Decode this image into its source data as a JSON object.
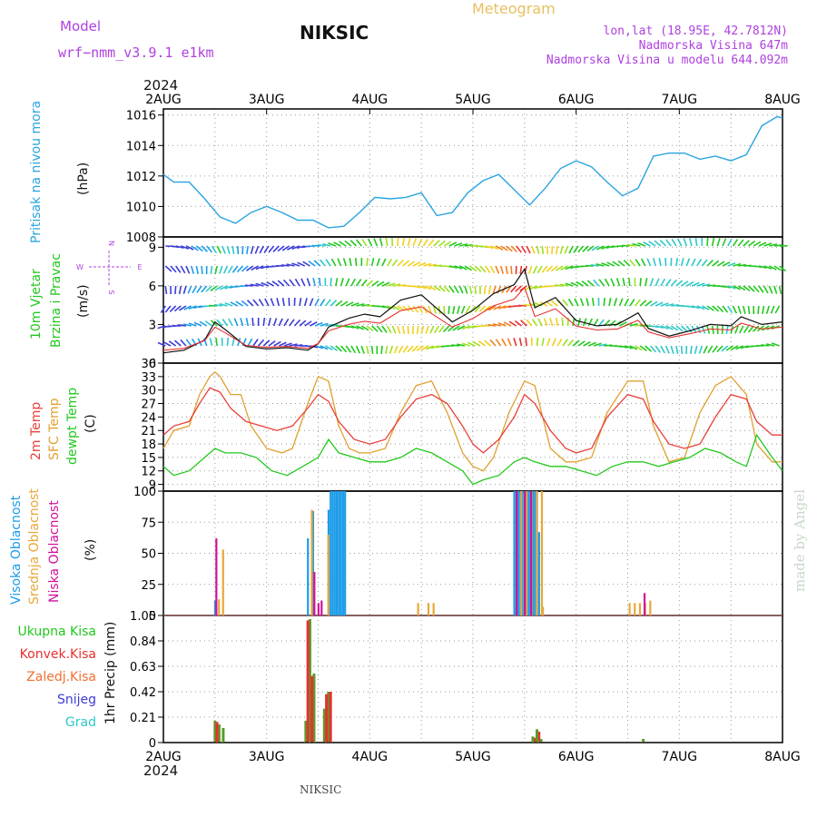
{
  "header": {
    "model_label": "Model",
    "model_name": "wrf−nmm_v3.9.1  e1km",
    "station": "NIKSIC",
    "meteogram_label": "Meteogram",
    "lonlat": "lon,lat (18.95E, 42.7812N)",
    "altitude": "Nadmorska Visina 647m",
    "model_altitude": "Nadmorska Visina u modelu 644.092m",
    "year_top": "2024",
    "year_bottom": "2024",
    "footer_station": "NIKSIC",
    "watermark": "made by Angel"
  },
  "colors": {
    "pressure": "#2aa4e0",
    "temp2m": "#e8403a",
    "sfc": "#e0a030",
    "dewpt": "#22c81e",
    "high_cloud": "#1c9ce8",
    "mid_cloud": "#e8a838",
    "low_cloud": "#d0109a",
    "total_precip": "#5a9a2a",
    "conv_precip": "#e83030",
    "snow": "#3c3cd8",
    "hail": "#30c8c8",
    "grid": "#999999"
  },
  "chart_data": [
    {
      "type": "line",
      "title": "",
      "ylabel_1": "Pritisak na nivou mora",
      "ylabel_2": "(hPa)",
      "x_ticks": [
        "2AUG",
        "3AUG",
        "4AUG",
        "5AUG",
        "6AUG",
        "7AUG",
        "8AUG"
      ],
      "ylim": [
        1008,
        1016.4
      ],
      "yticks": [
        "1008",
        "1010",
        "1012",
        "1014",
        "1016"
      ],
      "series": [
        {
          "key": "pressure",
          "x": [
            0,
            0.1,
            0.25,
            0.4,
            0.55,
            0.7,
            0.85,
            1.0,
            1.15,
            1.3,
            1.45,
            1.6,
            1.75,
            1.9,
            2.05,
            2.2,
            2.35,
            2.5,
            2.65,
            2.8,
            2.95,
            3.1,
            3.25,
            3.4,
            3.55,
            3.7,
            3.85,
            4.0,
            4.15,
            4.3,
            4.45,
            4.6,
            4.75,
            4.9,
            5.05,
            5.2,
            5.35,
            5.5,
            5.65,
            5.8,
            5.95,
            6.0
          ],
          "values": [
            1012.1,
            1011.6,
            1011.6,
            1010.5,
            1009.3,
            1008.9,
            1009.6,
            1010.0,
            1009.6,
            1009.1,
            1009.1,
            1008.6,
            1008.7,
            1009.6,
            1010.6,
            1010.5,
            1010.6,
            1010.9,
            1009.4,
            1009.6,
            1010.9,
            1011.7,
            1012.1,
            1011.1,
            1010.1,
            1011.2,
            1012.5,
            1013.0,
            1012.6,
            1011.6,
            1010.7,
            1011.2,
            1013.3,
            1013.5,
            1013.5,
            1013.1,
            1013.3,
            1013.0,
            1013.4,
            1015.3,
            1015.9,
            1015.8
          ]
        }
      ]
    },
    {
      "type": "line",
      "title": "",
      "ylabel_1": "10m Vjetar",
      "ylabel_2": "Brzina i Pravac",
      "ylabel_3": "(m/s)",
      "compass": {
        "n": "N",
        "s": "S",
        "w": "W",
        "e": "E"
      },
      "ylim": [
        0,
        9.8
      ],
      "yticks": [
        "0",
        "3",
        "6",
        "9"
      ],
      "series": [
        {
          "key": "wind_speed",
          "x": [
            0,
            0.2,
            0.4,
            0.5,
            0.6,
            0.8,
            1.0,
            1.2,
            1.4,
            1.5,
            1.6,
            1.8,
            1.95,
            2.1,
            2.3,
            2.5,
            2.6,
            2.8,
            3.0,
            3.2,
            3.4,
            3.5,
            3.6,
            3.8,
            4.0,
            4.2,
            4.4,
            4.6,
            4.7,
            4.9,
            5.1,
            5.3,
            5.5,
            5.6,
            5.8,
            6.0
          ],
          "values": [
            0.8,
            1.0,
            1.8,
            3.2,
            2.6,
            1.3,
            1.1,
            1.2,
            1.0,
            1.5,
            2.8,
            3.5,
            3.8,
            3.6,
            4.9,
            5.3,
            4.6,
            3.2,
            4.1,
            5.4,
            6.1,
            7.3,
            4.3,
            5.1,
            3.3,
            2.9,
            3.0,
            3.9,
            2.7,
            2.1,
            2.5,
            3.0,
            2.9,
            3.6,
            3.0,
            3.2
          ]
        }
      ]
    },
    {
      "type": "line",
      "title": "",
      "ylabel_1": "2m Temp",
      "ylabel_2": "SFC Temp",
      "ylabel_3": "dewpt Temp",
      "ylabel_4": "(C)",
      "ylim": [
        7.5,
        36
      ],
      "yticks": [
        "9",
        "12",
        "15",
        "18",
        "21",
        "24",
        "27",
        "30",
        "33",
        "36"
      ],
      "series": [
        {
          "key": "temp2m",
          "x": [
            0,
            0.1,
            0.25,
            0.35,
            0.45,
            0.55,
            0.65,
            0.8,
            0.95,
            1.1,
            1.25,
            1.4,
            1.5,
            1.6,
            1.7,
            1.85,
            2.0,
            2.15,
            2.3,
            2.45,
            2.6,
            2.75,
            2.9,
            3.0,
            3.1,
            3.25,
            3.4,
            3.5,
            3.6,
            3.75,
            3.9,
            4.0,
            4.15,
            4.3,
            4.5,
            4.65,
            4.75,
            4.9,
            5.05,
            5.2,
            5.35,
            5.5,
            5.65,
            5.75,
            5.9,
            6.0
          ],
          "values": [
            20,
            22,
            23,
            27,
            30.5,
            29.5,
            26,
            23,
            22,
            21,
            22,
            26,
            29,
            27.5,
            23,
            19,
            18,
            19,
            24,
            28,
            29,
            27,
            22,
            18,
            16,
            19,
            24,
            29,
            27,
            21,
            17,
            16,
            17,
            24,
            29,
            28,
            23,
            18,
            17,
            18,
            24,
            29,
            28,
            23,
            20,
            20
          ]
        },
        {
          "key": "sfc",
          "x": [
            0,
            0.1,
            0.25,
            0.35,
            0.45,
            0.5,
            0.55,
            0.65,
            0.75,
            0.85,
            1.0,
            1.15,
            1.25,
            1.4,
            1.5,
            1.6,
            1.7,
            1.8,
            1.9,
            2.0,
            2.15,
            2.3,
            2.45,
            2.6,
            2.75,
            2.9,
            3.0,
            3.1,
            3.2,
            3.35,
            3.5,
            3.6,
            3.75,
            3.9,
            4.0,
            4.15,
            4.3,
            4.5,
            4.65,
            4.75,
            4.9,
            5.05,
            5.2,
            5.35,
            5.5,
            5.65,
            5.75,
            5.9,
            6.0
          ],
          "values": [
            17,
            21,
            22,
            29,
            33,
            34,
            33,
            29,
            29,
            22,
            17,
            16,
            17,
            27,
            33,
            32,
            22,
            17,
            16,
            16,
            17,
            25,
            31,
            32,
            25,
            16,
            13,
            12,
            15,
            25,
            32,
            31,
            17,
            14,
            14,
            15,
            25,
            32,
            32,
            22,
            14,
            15,
            25,
            31,
            33,
            29,
            18,
            14,
            14
          ]
        },
        {
          "key": "dewpt",
          "x": [
            0,
            0.1,
            0.25,
            0.4,
            0.5,
            0.6,
            0.75,
            0.9,
            1.05,
            1.2,
            1.35,
            1.5,
            1.6,
            1.7,
            1.85,
            2.0,
            2.15,
            2.3,
            2.45,
            2.6,
            2.75,
            2.9,
            3.0,
            3.1,
            3.25,
            3.4,
            3.5,
            3.6,
            3.75,
            3.9,
            4.05,
            4.2,
            4.35,
            4.5,
            4.65,
            4.8,
            4.95,
            5.1,
            5.25,
            5.4,
            5.55,
            5.65,
            5.75,
            5.9,
            6.0
          ],
          "values": [
            13,
            11,
            12,
            15,
            17,
            16,
            16,
            15,
            12,
            11,
            13,
            15,
            19,
            16,
            15,
            14,
            14,
            15,
            17,
            16,
            14,
            12,
            9,
            10,
            11,
            14,
            15,
            14,
            13,
            13,
            12,
            11,
            13,
            14,
            14,
            13,
            14,
            15,
            17,
            16,
            14,
            13,
            20,
            15,
            12
          ]
        }
      ]
    },
    {
      "type": "bar",
      "title": "",
      "ylabel_1": "Visoka Oblacnost",
      "ylabel_2": "Srednja Oblacnost",
      "ylabel_3": "Niska Oblacnost",
      "ylabel_4": "(%)",
      "ylim": [
        0,
        100
      ],
      "yticks": [
        "0",
        "25",
        "50",
        "75",
        "100"
      ],
      "series": [
        {
          "key": "high",
          "x": [
            0.5,
            1.4,
            1.45,
            1.6,
            1.62,
            1.64,
            1.66,
            1.68,
            1.7,
            1.72,
            1.74,
            1.76,
            3.4,
            3.42,
            3.44,
            3.46,
            3.48,
            3.5,
            3.52,
            3.54,
            3.56,
            3.58,
            3.6,
            3.62,
            3.64
          ],
          "values": [
            12,
            62,
            84,
            85,
            100,
            100,
            100,
            100,
            100,
            100,
            100,
            100,
            100,
            100,
            100,
            100,
            100,
            100,
            100,
            100,
            100,
            100,
            100,
            100,
            67
          ]
        },
        {
          "key": "mid",
          "x": [
            0.52,
            0.56,
            1.42,
            1.58,
            2.45,
            2.55,
            2.6,
            3.45,
            3.5,
            3.55,
            3.6,
            3.65,
            3.66,
            4.5,
            4.55,
            4.6,
            4.65,
            4.7
          ],
          "values": [
            13,
            53,
            85,
            65,
            10,
            10,
            10,
            100,
            100,
            100,
            100,
            100,
            7,
            10,
            10,
            10,
            10,
            12
          ]
        },
        {
          "key": "low",
          "x": [
            0.53,
            1.48,
            1.55,
            1.52,
            3.44,
            3.52,
            3.58,
            4.68
          ],
          "values": [
            62,
            35,
            12,
            10,
            100,
            100,
            100,
            18
          ]
        }
      ]
    },
    {
      "type": "bar",
      "title": "",
      "legend": [
        "Ukupna  Kisa",
        "Konvek.Kisa",
        "Zaledj.Kisa",
        "Snijeg",
        "Grad"
      ],
      "ylabel_1": "1hr Precip (mm)",
      "ylim": [
        0,
        1.05
      ],
      "yticks": [
        "0",
        "0.21",
        "0.42",
        "0.63",
        "0.84",
        "1.05"
      ],
      "x_ticks": [
        "2AUG",
        "3AUG",
        "4AUG",
        "5AUG",
        "6AUG",
        "7AUG",
        "8AUG"
      ],
      "series": [
        {
          "key": "total",
          "x": [
            0.5,
            0.54,
            0.58,
            1.38,
            1.42,
            1.46,
            1.56,
            1.6
          ],
          "values": [
            0.18,
            0.15,
            0.12,
            0.18,
            1.02,
            0.57,
            0.28,
            0.42
          ]
        },
        {
          "key": "conv",
          "x": [
            0.52,
            1.4,
            1.44,
            1.58,
            1.62,
            3.6,
            3.64
          ],
          "values": [
            0.17,
            1.01,
            0.55,
            0.4,
            0.42,
            0.04,
            0.09
          ]
        },
        {
          "key": "total_b",
          "x": [
            3.58,
            3.62,
            3.66,
            4.65
          ],
          "values": [
            0.05,
            0.11,
            0.03,
            0.03
          ]
        }
      ]
    }
  ]
}
